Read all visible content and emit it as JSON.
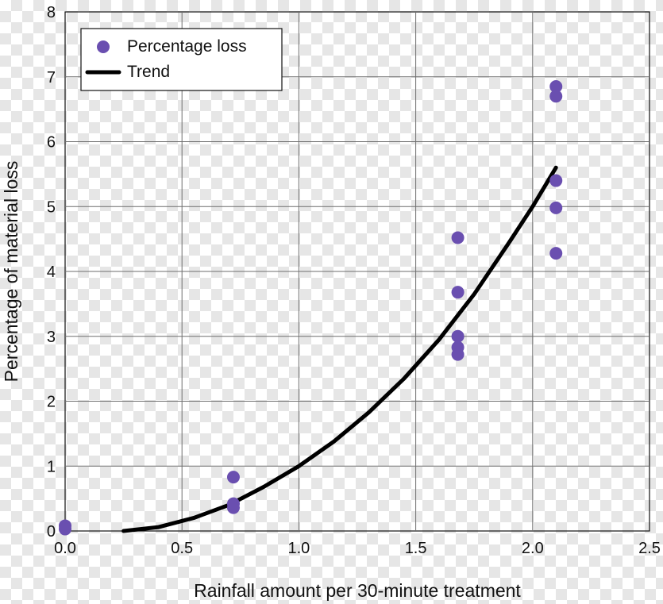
{
  "chart_data": {
    "type": "scatter",
    "title": "",
    "xlabel": "Rainfall amount per 30-minute treatment",
    "ylabel": "Percentage of material loss",
    "xlim": [
      0,
      2.5
    ],
    "ylim": [
      0,
      8
    ],
    "x_ticks": [
      "0.0",
      "0.5",
      "1.0",
      "1.5",
      "2.0",
      "2.5"
    ],
    "y_ticks": [
      "0",
      "1",
      "2",
      "3",
      "4",
      "5",
      "6",
      "7",
      "8"
    ],
    "grid": true,
    "legend_position": "top-left",
    "series": [
      {
        "name": "Percentage loss",
        "kind": "points",
        "color": "#6a4fb0",
        "points": [
          {
            "x": 0.0,
            "y": 0.08
          },
          {
            "x": 0.0,
            "y": 0.03
          },
          {
            "x": 0.72,
            "y": 0.83
          },
          {
            "x": 0.72,
            "y": 0.42
          },
          {
            "x": 0.72,
            "y": 0.36
          },
          {
            "x": 1.68,
            "y": 4.52
          },
          {
            "x": 1.68,
            "y": 3.68
          },
          {
            "x": 1.68,
            "y": 3.0
          },
          {
            "x": 1.68,
            "y": 2.83
          },
          {
            "x": 1.68,
            "y": 2.72
          },
          {
            "x": 2.1,
            "y": 6.85
          },
          {
            "x": 2.1,
            "y": 6.7
          },
          {
            "x": 2.1,
            "y": 5.4
          },
          {
            "x": 2.1,
            "y": 4.98
          },
          {
            "x": 2.1,
            "y": 4.28
          }
        ]
      },
      {
        "name": "Trend",
        "kind": "line",
        "color": "#000000",
        "points": [
          {
            "x": 0.25,
            "y": 0.0
          },
          {
            "x": 0.4,
            "y": 0.06
          },
          {
            "x": 0.55,
            "y": 0.2
          },
          {
            "x": 0.7,
            "y": 0.4
          },
          {
            "x": 0.85,
            "y": 0.68
          },
          {
            "x": 1.0,
            "y": 1.0
          },
          {
            "x": 1.15,
            "y": 1.38
          },
          {
            "x": 1.3,
            "y": 1.83
          },
          {
            "x": 1.45,
            "y": 2.35
          },
          {
            "x": 1.6,
            "y": 2.95
          },
          {
            "x": 1.75,
            "y": 3.65
          },
          {
            "x": 1.9,
            "y": 4.45
          },
          {
            "x": 2.0,
            "y": 5.0
          },
          {
            "x": 2.1,
            "y": 5.6
          }
        ]
      }
    ]
  }
}
